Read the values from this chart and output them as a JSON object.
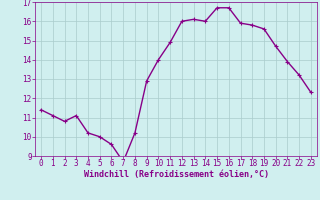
{
  "x": [
    0,
    1,
    2,
    3,
    4,
    5,
    6,
    7,
    8,
    9,
    10,
    11,
    12,
    13,
    14,
    15,
    16,
    17,
    18,
    19,
    20,
    21,
    22,
    23
  ],
  "y": [
    11.4,
    11.1,
    10.8,
    11.1,
    10.2,
    10.0,
    9.6,
    8.7,
    10.2,
    12.9,
    14.0,
    14.9,
    16.0,
    16.1,
    16.0,
    16.7,
    16.7,
    15.9,
    15.8,
    15.6,
    14.7,
    13.9,
    13.2,
    12.3
  ],
  "xlabel": "Windchill (Refroidissement éolien,°C)",
  "ylim": [
    9,
    17
  ],
  "xlim": [
    -0.5,
    23.5
  ],
  "yticks": [
    9,
    10,
    11,
    12,
    13,
    14,
    15,
    16,
    17
  ],
  "xticks": [
    0,
    1,
    2,
    3,
    4,
    5,
    6,
    7,
    8,
    9,
    10,
    11,
    12,
    13,
    14,
    15,
    16,
    17,
    18,
    19,
    20,
    21,
    22,
    23
  ],
  "line_color": "#880088",
  "marker_color": "#880088",
  "bg_color": "#d0efef",
  "grid_color": "#aacccc",
  "axis_label_color": "#880088",
  "tick_color": "#880088",
  "xlabel_fontsize": 6.0,
  "tick_fontsize": 5.5,
  "line_width": 1.0,
  "marker_size": 2.0
}
